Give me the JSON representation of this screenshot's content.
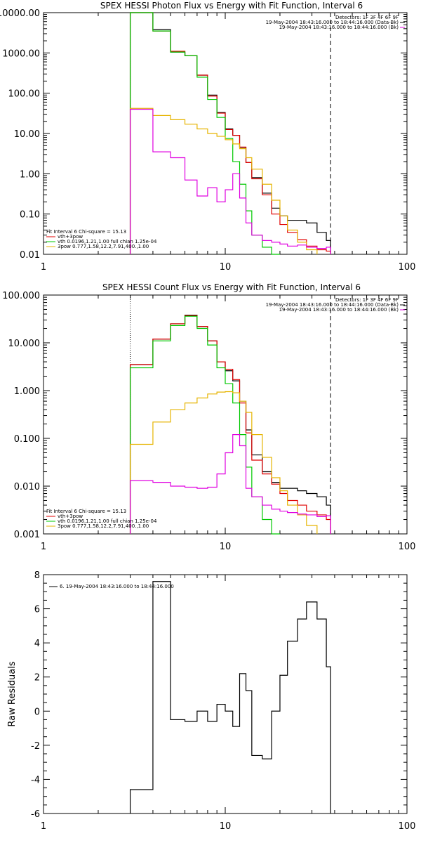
{
  "chart_data": [
    {
      "type": "line",
      "title": "SPEX HESSI Photon Flux vs Energy with Fit Function, Interval 6",
      "xscale": "log",
      "yscale": "log",
      "xlim": [
        1,
        100
      ],
      "ylim": [
        0.01,
        10000
      ],
      "x_tick_labels": [
        "1",
        "10",
        "100"
      ],
      "y_tick_labels": [
        "0.01",
        "0.10",
        "1.00",
        "10.00",
        "100.00",
        "1000.00",
        "10000.00"
      ],
      "y_ticks": [
        0.01,
        0.1,
        1,
        10,
        100,
        1000,
        10000
      ],
      "legend_top": [
        {
          "text": "Detectors: 1F 3F 4F 6F 9F",
          "color": ""
        },
        {
          "text": "19-May-2004 18:43:16.000 to 18:44:16.000 (Data-Bk)",
          "color": "#000000"
        },
        {
          "text": "19-May-2004 18:43:16.000 to 18:44:16.000 (Bk)",
          "color": "#e000e0"
        }
      ],
      "legend_bottom": [
        {
          "text": "Fit Interval 6    Chi-square = 15.13",
          "color": ""
        },
        {
          "text": "vth+3pow",
          "color": "#e00000"
        },
        {
          "text": "vth 0.0196,1.21,1.00  full chian 1.25e-04",
          "color": "#00c800"
        },
        {
          "text": "3pow 0.777,1.58,12.2,7.91,400.,1.00",
          "color": "#e6b400"
        }
      ],
      "vlines": [
        {
          "x": 3,
          "style": "dotted-orange"
        },
        {
          "x": 38,
          "style": "dashed"
        }
      ],
      "series": [
        {
          "role": "data",
          "color": "#000000",
          "edges": [
            3,
            4,
            5,
            6,
            7,
            8,
            9,
            10,
            11,
            12,
            13,
            14,
            16,
            18,
            20,
            22,
            25,
            28,
            32,
            36,
            38
          ],
          "values": [
            10000,
            3800,
            1050,
            850,
            280,
            90,
            33,
            13,
            9,
            4.5,
            1.9,
            0.8,
            0.33,
            0.14,
            0.09,
            0.07,
            0.07,
            0.06,
            0.035,
            0.022
          ]
        },
        {
          "role": "fit",
          "color": "#e00000",
          "edges": [
            3,
            4,
            5,
            6,
            7,
            8,
            9,
            10,
            11,
            12,
            13,
            14,
            16,
            18,
            20,
            22,
            25,
            28,
            32,
            36,
            38
          ],
          "values": [
            10000,
            3500,
            1100,
            850,
            280,
            85,
            32,
            12.5,
            9,
            4.6,
            1.9,
            0.75,
            0.3,
            0.1,
            0.055,
            0.035,
            0.023,
            0.016,
            0.013,
            0.012
          ]
        },
        {
          "role": "vth",
          "color": "#00c800",
          "edges": [
            3,
            4,
            5,
            6,
            7,
            8,
            9,
            10,
            11,
            12,
            13,
            14,
            16,
            18,
            20
          ],
          "values": [
            10000,
            3500,
            1050,
            850,
            250,
            70,
            25,
            7.5,
            2,
            0.55,
            0.12,
            0.03,
            0.015,
            0.01
          ]
        },
        {
          "role": "3pow",
          "color": "#e6b400",
          "edges": [
            3,
            4,
            5,
            6,
            7,
            8,
            9,
            10,
            11,
            12,
            13,
            14,
            16,
            18,
            20,
            22,
            25,
            28,
            32
          ],
          "values": [
            42,
            28,
            22,
            17,
            13,
            10,
            8.5,
            7,
            5.5,
            4.2,
            2.5,
            1.3,
            0.55,
            0.22,
            0.09,
            0.04,
            0.02,
            0.013
          ]
        },
        {
          "role": "background",
          "color": "#e000e0",
          "edges": [
            3,
            4,
            5,
            6,
            7,
            8,
            9,
            10,
            11,
            12,
            13,
            14,
            16,
            18,
            20,
            22,
            25,
            28,
            32,
            36,
            38
          ],
          "values": [
            40,
            3.5,
            2.5,
            0.7,
            0.28,
            0.45,
            0.2,
            0.4,
            1.0,
            0.25,
            0.06,
            0.03,
            0.022,
            0.02,
            0.018,
            0.016,
            0.017,
            0.015,
            0.014,
            0.015
          ]
        }
      ]
    },
    {
      "type": "line",
      "title": "SPEX HESSI Count Flux vs Energy with Fit Function, Interval 6",
      "xscale": "log",
      "yscale": "log",
      "xlim": [
        1,
        100
      ],
      "ylim": [
        0.001,
        100
      ],
      "x_tick_labels": [
        "1",
        "10",
        "100"
      ],
      "y_tick_labels": [
        "0.001",
        "0.010",
        "0.100",
        "1.000",
        "10.000",
        "100.000"
      ],
      "y_ticks": [
        0.001,
        0.01,
        0.1,
        1,
        10,
        100
      ],
      "legend_top": [
        {
          "text": "Detectors: 1F 3F 4F 6F 9F",
          "color": ""
        },
        {
          "text": "19-May-2004 18:43:16.000 to 18:44:16.000 (Data-Bk)",
          "color": "#000000"
        },
        {
          "text": "19-May-2004 18:43:16.000 to 18:44:16.000 (Bk)",
          "color": "#e000e0"
        }
      ],
      "legend_bottom": [
        {
          "text": "Fit Interval 6    Chi-square = 15.13",
          "color": ""
        },
        {
          "text": "vth+3pow",
          "color": "#e00000"
        },
        {
          "text": "vth 0.0196,1.21,1.00  full chian 1.25e-04",
          "color": "#00c800"
        },
        {
          "text": "3pow 0.777,1.58,12.2,7.91,400.,1.00",
          "color": "#e6b400"
        }
      ],
      "vlines": [
        {
          "x": 3,
          "style": "dotted-black"
        },
        {
          "x": 38,
          "style": "dashed"
        }
      ],
      "series": [
        {
          "role": "data",
          "color": "#000000",
          "edges": [
            3,
            4,
            5,
            6,
            7,
            8,
            9,
            10,
            11,
            12,
            13,
            14,
            16,
            18,
            20,
            22,
            25,
            28,
            32,
            36,
            38
          ],
          "values": [
            3.5,
            12,
            25,
            38,
            22,
            11,
            4,
            2.6,
            1.6,
            0.6,
            0.15,
            0.045,
            0.02,
            0.012,
            0.009,
            0.009,
            0.008,
            0.007,
            0.006,
            0.004
          ]
        },
        {
          "role": "fit",
          "color": "#e00000",
          "edges": [
            3,
            4,
            5,
            6,
            7,
            8,
            9,
            10,
            11,
            12,
            13,
            14,
            16,
            18,
            20,
            22,
            25,
            28,
            32,
            36,
            38
          ],
          "values": [
            3.5,
            12,
            25,
            37,
            22,
            11,
            4,
            2.8,
            1.7,
            0.55,
            0.13,
            0.035,
            0.018,
            0.011,
            0.007,
            0.005,
            0.004,
            0.003,
            0.0025,
            0.002
          ]
        },
        {
          "role": "vth",
          "color": "#00c800",
          "edges": [
            3,
            4,
            5,
            6,
            7,
            8,
            9,
            10,
            11,
            12,
            13,
            14,
            16,
            18,
            20
          ],
          "values": [
            3,
            11,
            23,
            36,
            20,
            9,
            3,
            1.4,
            0.55,
            0.12,
            0.025,
            0.006,
            0.002,
            0.001
          ]
        },
        {
          "role": "3pow",
          "color": "#e6b400",
          "edges": [
            3,
            4,
            5,
            6,
            7,
            8,
            9,
            10,
            11,
            12,
            13,
            14,
            16,
            18,
            20,
            22,
            25,
            28,
            32
          ],
          "values": [
            0.075,
            0.22,
            0.4,
            0.55,
            0.7,
            0.85,
            0.93,
            0.95,
            0.9,
            0.6,
            0.35,
            0.12,
            0.04,
            0.015,
            0.008,
            0.004,
            0.0025,
            0.0015
          ]
        },
        {
          "role": "background",
          "color": "#e000e0",
          "edges": [
            3,
            4,
            5,
            6,
            7,
            8,
            9,
            10,
            11,
            12,
            13,
            14,
            16,
            18,
            20,
            22,
            25,
            28,
            32,
            36,
            38
          ],
          "values": [
            0.013,
            0.012,
            0.01,
            0.0095,
            0.009,
            0.0095,
            0.018,
            0.05,
            0.12,
            0.07,
            0.009,
            0.006,
            0.004,
            0.0033,
            0.003,
            0.0028,
            0.0026,
            0.0025,
            0.0023,
            0.0024
          ]
        }
      ]
    },
    {
      "type": "line",
      "title": "",
      "xscale": "log",
      "yscale": "linear",
      "xlim": [
        1,
        100
      ],
      "ylim": [
        -6,
        8
      ],
      "ylabel": "Raw Residuals",
      "x_tick_labels": [
        "1",
        "10",
        "100"
      ],
      "y_tick_labels": [
        "-6",
        "-4",
        "-2",
        "0",
        "2",
        "4",
        "6",
        "8"
      ],
      "y_ticks": [
        -6,
        -4,
        -2,
        0,
        2,
        4,
        6,
        8
      ],
      "legend": [
        {
          "text": "6. 19-May-2004 18:43:16.000 to 18:44:16.000",
          "color": "#000000"
        }
      ],
      "series": [
        {
          "role": "residuals",
          "color": "#000000",
          "edges": [
            3,
            4,
            5,
            6,
            7,
            8,
            9,
            10,
            11,
            12,
            13,
            14,
            16,
            18,
            20,
            22,
            25,
            28,
            32,
            36,
            38
          ],
          "values": [
            -4.6,
            7.6,
            -0.5,
            -0.6,
            0,
            -0.6,
            0.4,
            0,
            -0.9,
            2.2,
            1.2,
            -2.6,
            -2.8,
            0,
            2.1,
            4.1,
            5.4,
            6.4,
            5.4,
            2.6
          ]
        }
      ]
    }
  ]
}
